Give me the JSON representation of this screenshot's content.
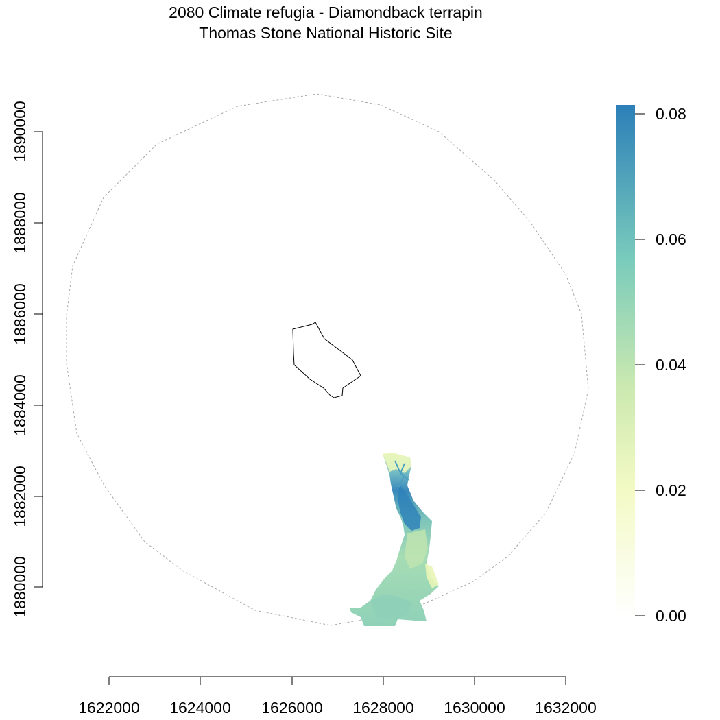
{
  "title": "2080 Climate refugia - Diamondback terrapin",
  "subtitle": "Thomas Stone National Historic Site",
  "map": {
    "x_axis": {
      "ticks": [
        "1622000",
        "1624000",
        "1626000",
        "1628000",
        "1630000",
        "1632000"
      ]
    },
    "y_axis": {
      "ticks": [
        "1880000",
        "1882000",
        "1884000",
        "1886000",
        "1888000",
        "1890000"
      ]
    },
    "legend": {
      "type": "continuous color scale",
      "ticks": [
        "0.00",
        "0.02",
        "0.04",
        "0.06",
        "0.08"
      ],
      "color_stops": [
        "#ffffff",
        "#f0f9c0",
        "#c2e6b3",
        "#7ccdbb",
        "#2c7fb8"
      ]
    },
    "layers": [
      "park boundary",
      "buffer boundary (dashed)",
      "refugia raster"
    ],
    "colors": {
      "park_boundary": "#000000",
      "buffer_boundary": "#9a9a9a"
    }
  }
}
